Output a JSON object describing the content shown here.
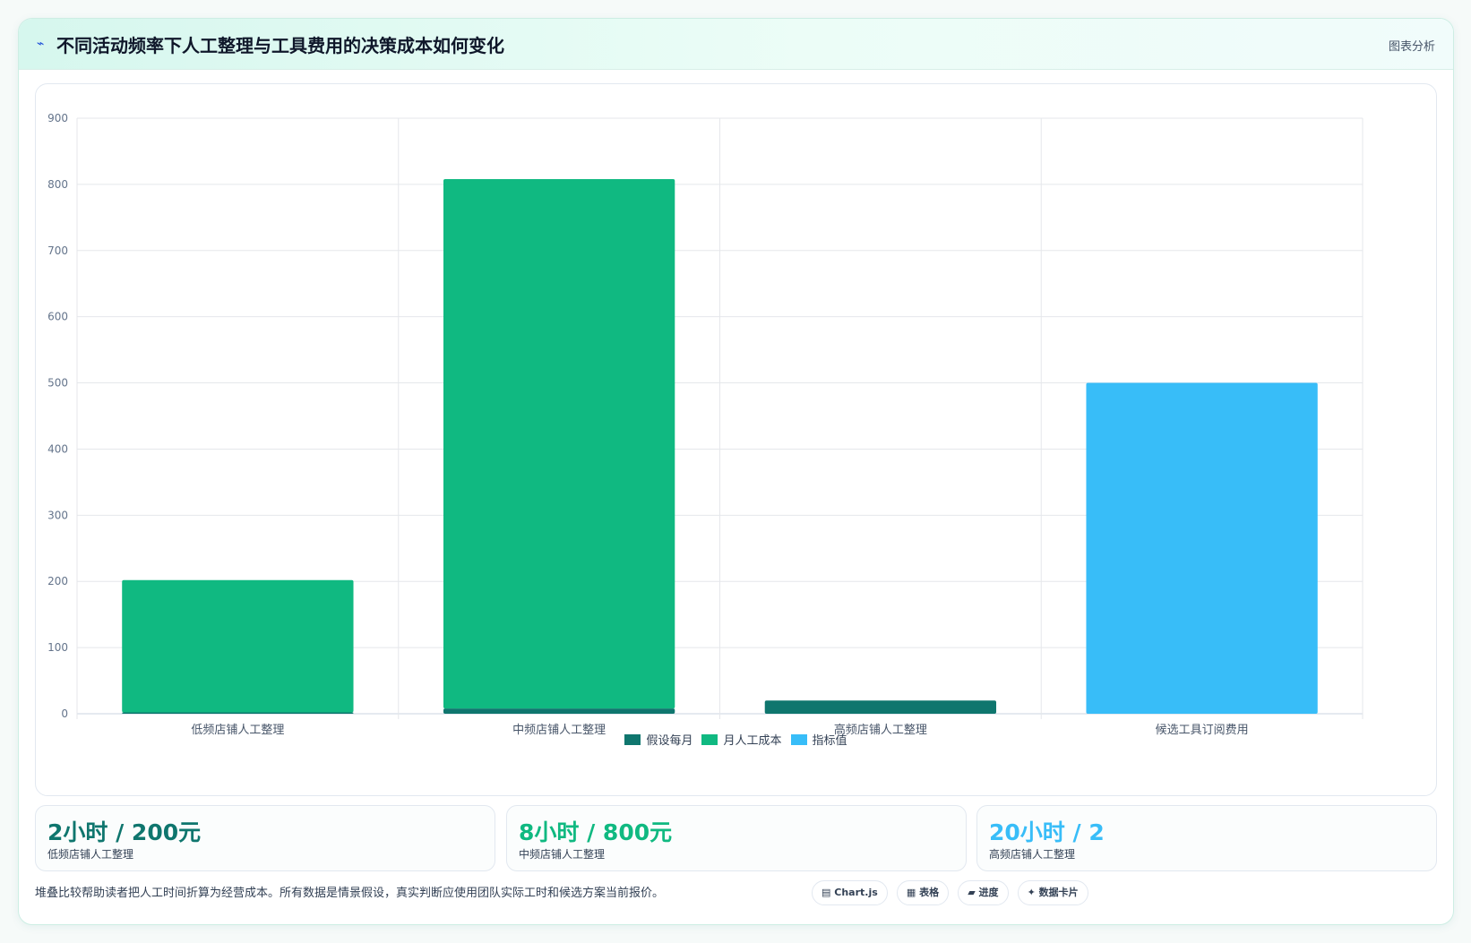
{
  "header": {
    "icon": "trend-icon",
    "title": "不同活动频率下人工整理与工具费用的决策成本如何变化",
    "tag": "图表分析"
  },
  "chart_data": {
    "type": "bar",
    "stacked": true,
    "categories": [
      "低频店铺人工整理",
      "中频店铺人工整理",
      "高频店铺人工整理",
      "候选工具订阅费用"
    ],
    "series": [
      {
        "name": "假设每月",
        "color": "#0f766e",
        "values": [
          2,
          8,
          20,
          0
        ]
      },
      {
        "name": "月人工成本",
        "color": "#10b981",
        "values": [
          200,
          800,
          0,
          0
        ]
      },
      {
        "name": "指标值",
        "color": "#38bdf8",
        "values": [
          0,
          0,
          0,
          500
        ]
      }
    ],
    "ylim": [
      0,
      900
    ],
    "yticks": [
      "0",
      "100",
      "200",
      "300",
      "400",
      "500",
      "600",
      "700",
      "800",
      "900"
    ],
    "grid": true,
    "legend_position": "bottom"
  },
  "stats": [
    {
      "value": "2小时 / 200元",
      "label": "低频店铺人工整理",
      "color": "#0f766e"
    },
    {
      "value": "8小时 / 800元",
      "label": "中频店铺人工整理",
      "color": "#10b981"
    },
    {
      "value": "20小时 / 2",
      "label": "高频店铺人工整理",
      "color": "#38bdf8"
    }
  ],
  "footnote": "堆叠比较帮助读者把人工时间折算为经营成本。所有数据是情景假设，真实判断应使用团队实际工时和候选方案当前报价。",
  "pills": [
    {
      "icon": "chart-icon",
      "glyph": "▤",
      "label": "Chart.js"
    },
    {
      "icon": "table-icon",
      "glyph": "▦",
      "label": "表格"
    },
    {
      "icon": "progress-icon",
      "glyph": "▰",
      "label": "进度"
    },
    {
      "icon": "sparkle-icon",
      "glyph": "✦",
      "label": "数据卡片"
    }
  ]
}
